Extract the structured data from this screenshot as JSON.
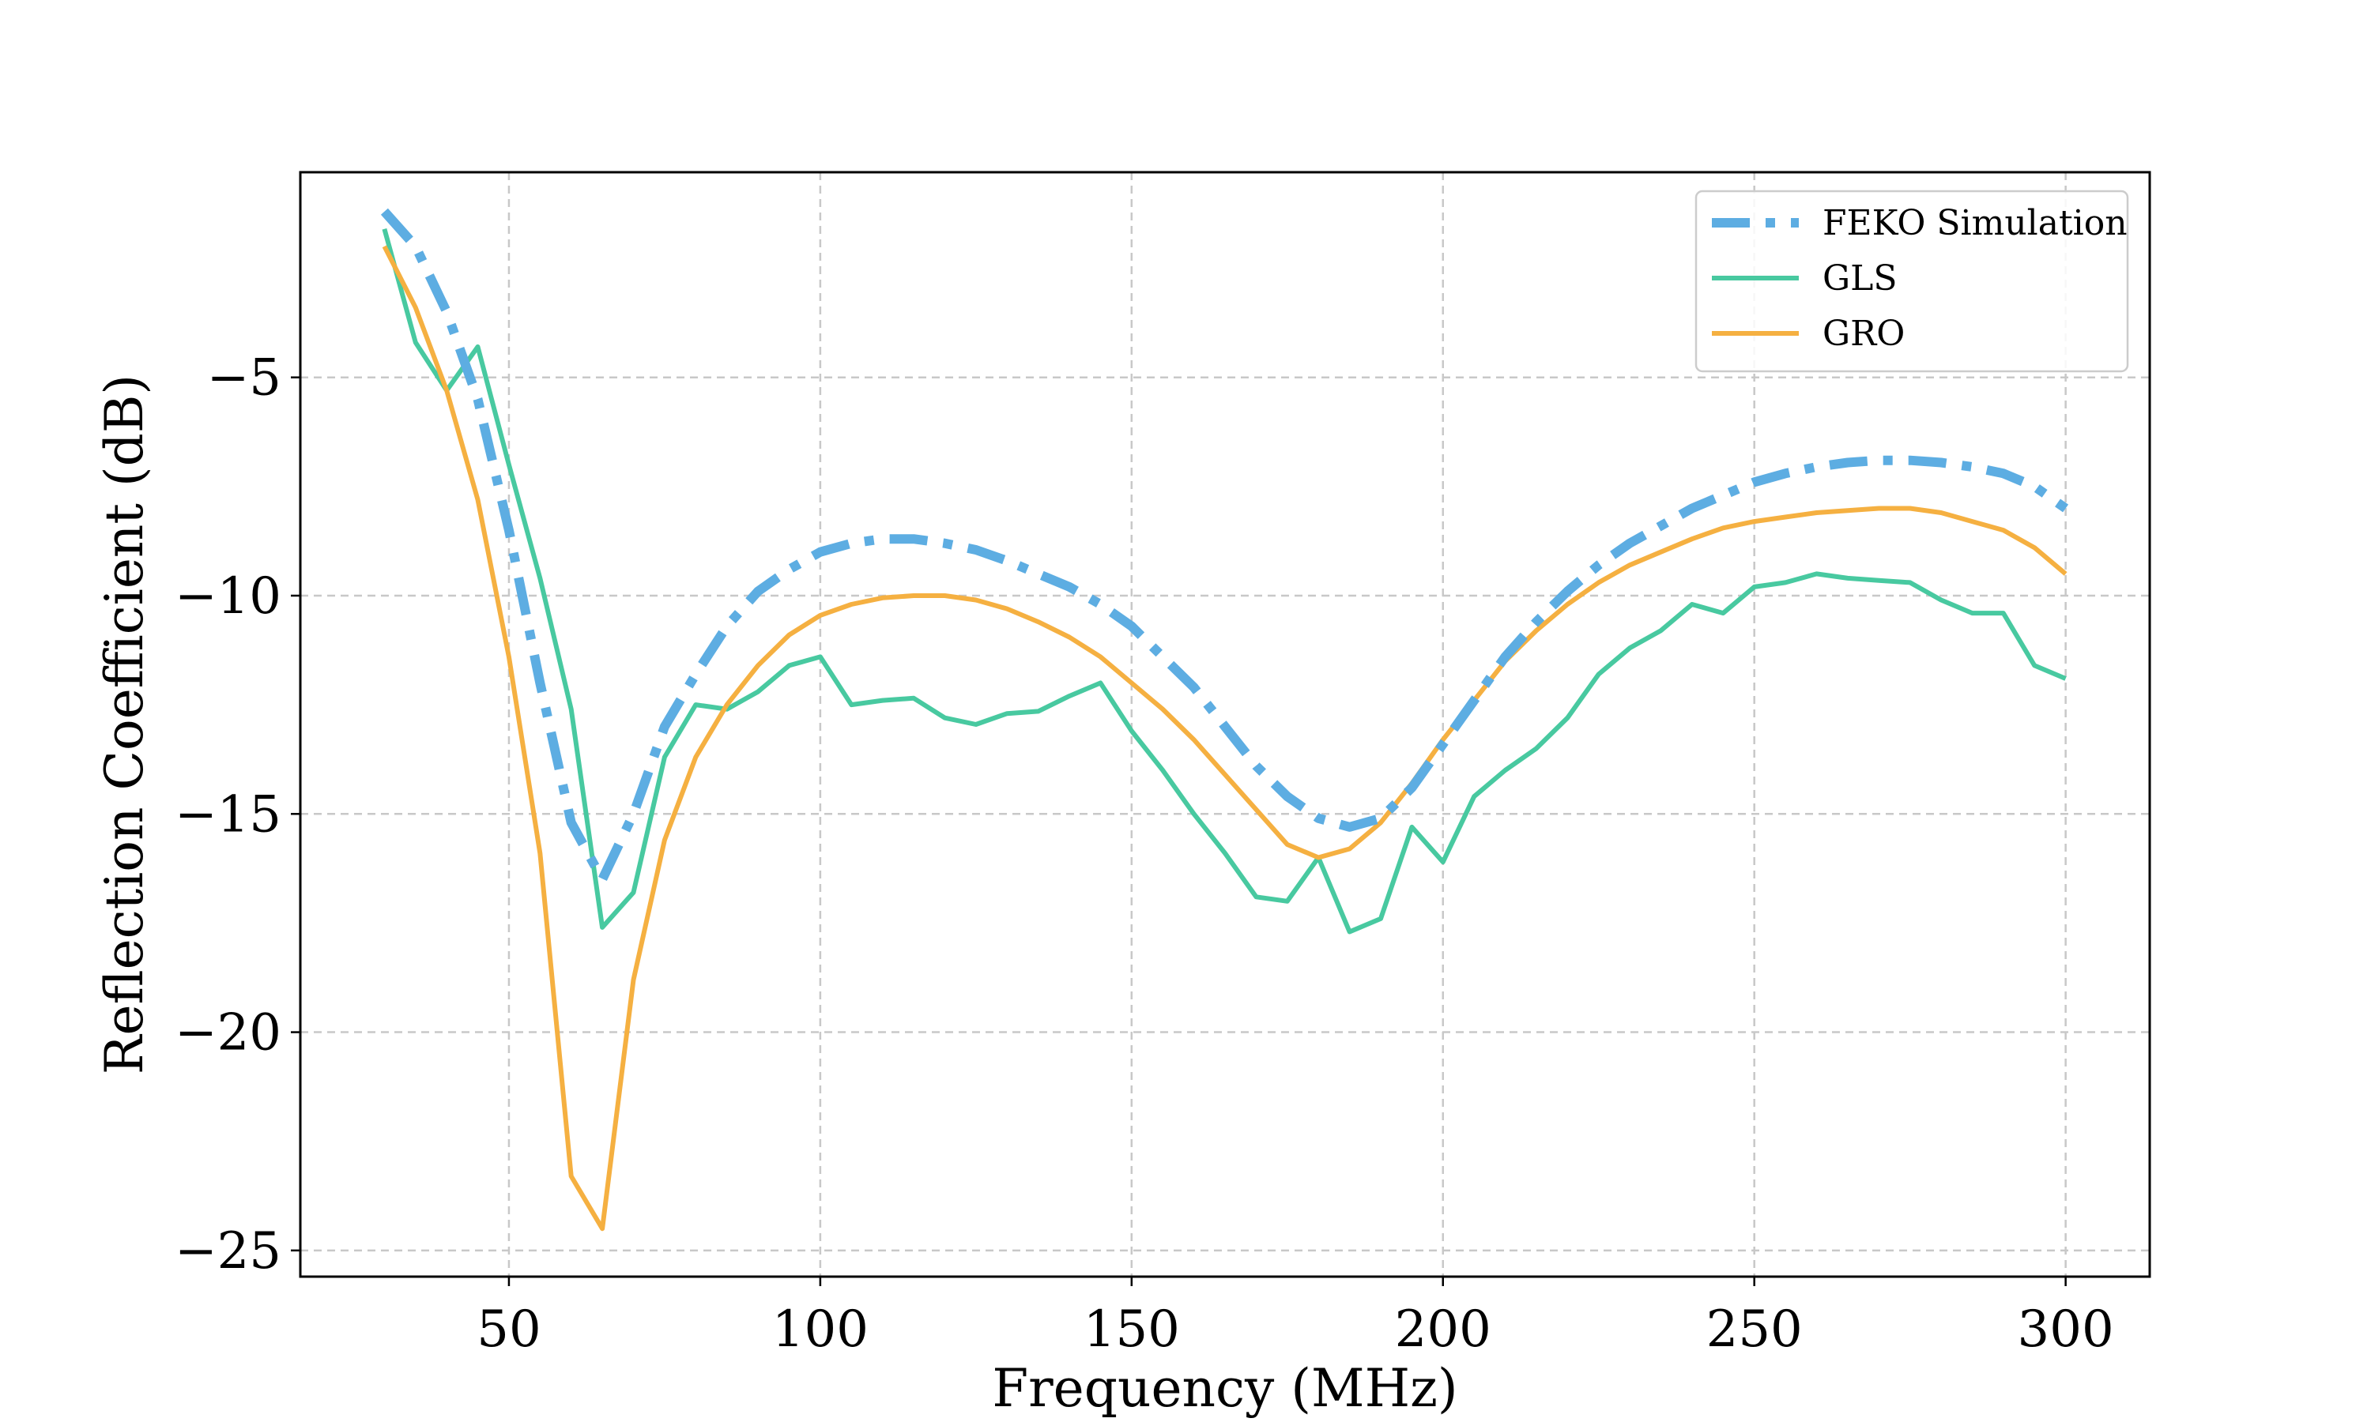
{
  "chart_data": {
    "type": "line",
    "title": "",
    "xlabel": "Frequency (MHz)",
    "ylabel": "Reflection Coefficient (dB)",
    "xlim": [
      16.5,
      313.5
    ],
    "ylim": [
      -25.6,
      -0.3
    ],
    "xticks": [
      50,
      100,
      150,
      200,
      250,
      300
    ],
    "yticks": [
      -5,
      -10,
      -15,
      -20,
      -25
    ],
    "xtick_labels": [
      "50",
      "100",
      "150",
      "200",
      "250",
      "300"
    ],
    "ytick_labels": [
      "−5",
      "−10",
      "−15",
      "−20",
      "−25"
    ],
    "grid": true,
    "legend_position": "top-right",
    "x": [
      30,
      35,
      40,
      45,
      50,
      55,
      60,
      65,
      70,
      75,
      80,
      85,
      90,
      95,
      100,
      105,
      110,
      115,
      120,
      125,
      130,
      135,
      140,
      145,
      150,
      155,
      160,
      165,
      170,
      175,
      180,
      185,
      190,
      195,
      200,
      205,
      210,
      215,
      220,
      225,
      230,
      235,
      240,
      245,
      250,
      255,
      260,
      265,
      270,
      275,
      280,
      285,
      290,
      295,
      300
    ],
    "series": [
      {
        "name": "FEKO Simulation",
        "color": "#5DADE2",
        "style": "dashdot",
        "values": [
          -1.2,
          -2.0,
          -3.5,
          -5.5,
          -8.5,
          -12.0,
          -15.2,
          -16.5,
          -15.0,
          -13.0,
          -11.8,
          -10.7,
          -9.9,
          -9.4,
          -9.0,
          -8.8,
          -8.7,
          -8.7,
          -8.8,
          -8.95,
          -9.2,
          -9.5,
          -9.8,
          -10.2,
          -10.7,
          -11.4,
          -12.1,
          -13.0,
          -13.9,
          -14.6,
          -15.1,
          -15.3,
          -15.1,
          -14.4,
          -13.4,
          -12.4,
          -11.4,
          -10.6,
          -9.9,
          -9.3,
          -8.8,
          -8.4,
          -8.0,
          -7.7,
          -7.4,
          -7.2,
          -7.05,
          -6.95,
          -6.9,
          -6.9,
          -6.95,
          -7.05,
          -7.2,
          -7.5,
          -8.0
        ]
      },
      {
        "name": "GLS",
        "color": "#48C9A0",
        "style": "solid",
        "values": [
          -1.6,
          -4.2,
          -5.3,
          -4.3,
          -7.0,
          -9.6,
          -12.6,
          -17.6,
          -16.8,
          -13.7,
          -12.5,
          -12.6,
          -12.2,
          -11.6,
          -11.4,
          -12.5,
          -12.4,
          -12.35,
          -12.8,
          -12.95,
          -12.7,
          -12.65,
          -12.3,
          -12.0,
          -13.1,
          -14.0,
          -15.0,
          -15.9,
          -16.9,
          -17.0,
          -16.0,
          -17.7,
          -17.4,
          -15.3,
          -16.1,
          -14.6,
          -14.0,
          -13.5,
          -12.8,
          -11.8,
          -11.2,
          -10.8,
          -10.2,
          -10.4,
          -9.8,
          -9.7,
          -9.5,
          -9.6,
          -9.65,
          -9.7,
          -10.1,
          -10.4,
          -10.4,
          -11.6,
          -11.9
        ]
      },
      {
        "name": "GRO",
        "color": "#F5B041",
        "style": "solid",
        "values": [
          -2.0,
          -3.4,
          -5.3,
          -7.8,
          -11.4,
          -15.9,
          -23.3,
          -24.5,
          -18.8,
          -15.6,
          -13.7,
          -12.5,
          -11.6,
          -10.9,
          -10.45,
          -10.2,
          -10.05,
          -10.0,
          -10.0,
          -10.1,
          -10.3,
          -10.6,
          -10.95,
          -11.4,
          -12.0,
          -12.6,
          -13.3,
          -14.1,
          -14.9,
          -15.7,
          -16.0,
          -15.8,
          -15.2,
          -14.3,
          -13.3,
          -12.4,
          -11.5,
          -10.8,
          -10.2,
          -9.7,
          -9.3,
          -9.0,
          -8.7,
          -8.45,
          -8.3,
          -8.2,
          -8.1,
          -8.05,
          -8.0,
          -8.0,
          -8.1,
          -8.3,
          -8.5,
          -8.9,
          -9.5
        ]
      }
    ]
  }
}
